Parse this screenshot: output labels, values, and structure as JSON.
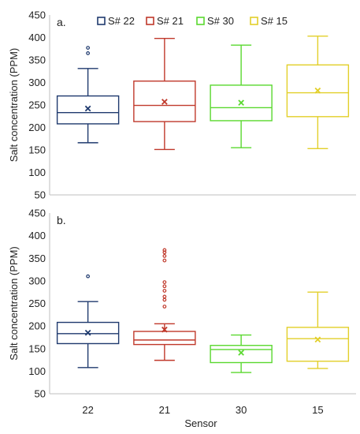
{
  "chart_data": [
    {
      "type": "box",
      "panel_label": "a.",
      "ylabel": "Salt concentration (PPM)",
      "xlabel": "",
      "ylim": [
        50,
        450
      ],
      "yticks": [
        50,
        100,
        150,
        200,
        250,
        300,
        350,
        400,
        450
      ],
      "grid": false,
      "legend": {
        "placement": "top",
        "entries": [
          {
            "label": "S# 22",
            "color": "#1f3a6e"
          },
          {
            "label": "S# 21",
            "color": "#c0392b"
          },
          {
            "label": "S# 30",
            "color": "#5ad82f"
          },
          {
            "label": "S# 15",
            "color": "#e2cf29"
          }
        ]
      },
      "series": [
        {
          "name": "S# 22",
          "color": "#1f3a6e",
          "min": 166,
          "q1": 208,
          "median": 233,
          "q3": 270,
          "max": 331,
          "mean": 242,
          "outliers": [
            365,
            377
          ]
        },
        {
          "name": "S# 21",
          "color": "#c0392b",
          "min": 151,
          "q1": 213,
          "median": 249,
          "q3": 303,
          "max": 398,
          "mean": 257,
          "outliers": []
        },
        {
          "name": "S# 30",
          "color": "#5ad82f",
          "min": 155,
          "q1": 215,
          "median": 244,
          "q3": 294,
          "max": 383,
          "mean": 255,
          "outliers": []
        },
        {
          "name": "S# 15",
          "color": "#e2cf29",
          "min": 153,
          "q1": 224,
          "median": 277,
          "q3": 339,
          "max": 403,
          "mean": 282,
          "outliers": []
        }
      ]
    },
    {
      "type": "box",
      "panel_label": "b.",
      "ylabel": "Salt concentration (PPM)",
      "xlabel": "Sensor",
      "categories": [
        "22",
        "21",
        "30",
        "15"
      ],
      "ylim": [
        50,
        450
      ],
      "yticks": [
        50,
        100,
        150,
        200,
        250,
        300,
        350,
        400,
        450
      ],
      "grid": false,
      "series": [
        {
          "name": "22",
          "color": "#1f3a6e",
          "min": 108,
          "q1": 161,
          "median": 183,
          "q3": 208,
          "max": 254,
          "mean": 185,
          "outliers": [
            310
          ]
        },
        {
          "name": "21",
          "color": "#c0392b",
          "min": 124,
          "q1": 159,
          "median": 169,
          "q3": 188,
          "max": 205,
          "mean": 192,
          "outliers": [
            243,
            258,
            265,
            278,
            288,
            297,
            345,
            355,
            363,
            368
          ]
        },
        {
          "name": "30",
          "color": "#5ad82f",
          "min": 97,
          "q1": 119,
          "median": 148,
          "q3": 157,
          "max": 180,
          "mean": 141,
          "outliers": []
        },
        {
          "name": "15",
          "color": "#e2cf29",
          "min": 106,
          "q1": 122,
          "median": 172,
          "q3": 197,
          "max": 275,
          "mean": 170,
          "outliers": []
        }
      ]
    }
  ]
}
